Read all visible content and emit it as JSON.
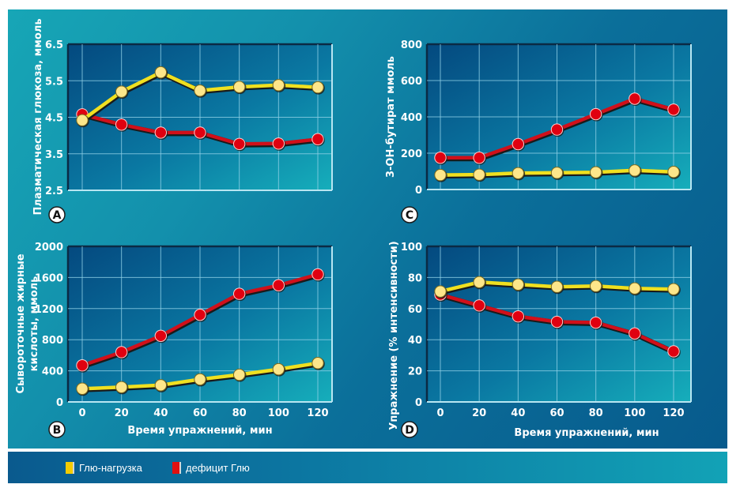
{
  "legend": {
    "items": [
      {
        "label": "Глю-нагрузка",
        "color": "#f5cc00"
      },
      {
        "label": "дефицит  Глю",
        "color": "#e01010"
      }
    ]
  },
  "colors": {
    "series_yellow_line": "#f0e020",
    "series_yellow_marker": "#fde68a",
    "series_red_line": "#d0101a",
    "series_red_marker": "#e00010",
    "grid": "#8fd0e6"
  },
  "chart_data": [
    {
      "panel": "A",
      "type": "line",
      "title": "",
      "xlabel": "",
      "ylabel": "Плазматическая глюкоза, ммоль",
      "x": [
        0,
        20,
        40,
        60,
        80,
        100,
        120
      ],
      "xlim": [
        0,
        120
      ],
      "ylim": [
        2.5,
        6.5
      ],
      "yticks": [
        "2.5",
        "3.5",
        "4.5",
        "5.5",
        "6.5"
      ],
      "ytick_values": [
        2.5,
        3.5,
        4.5,
        5.5,
        6.5
      ],
      "show_xtick_labels": false,
      "grid": true,
      "series": [
        {
          "name": "Глю-нагрузка",
          "values": [
            4.42,
            5.2,
            5.73,
            5.23,
            5.33,
            5.38,
            5.32
          ]
        },
        {
          "name": "дефицит Глю",
          "values": [
            4.58,
            4.3,
            4.08,
            4.08,
            3.77,
            3.78,
            3.9
          ]
        }
      ]
    },
    {
      "panel": "C",
      "type": "line",
      "title": "",
      "xlabel": "",
      "ylabel": "3-ОН-бутират ммоль",
      "x": [
        0,
        20,
        40,
        60,
        80,
        100,
        120
      ],
      "xlim": [
        0,
        120
      ],
      "ylim": [
        0,
        800
      ],
      "yticks": [
        "0",
        "200",
        "400",
        "600",
        "800"
      ],
      "ytick_values": [
        0,
        200,
        400,
        600,
        800
      ],
      "show_xtick_labels": false,
      "grid": true,
      "series": [
        {
          "name": "Глю-нагрузка",
          "values": [
            80,
            82,
            90,
            92,
            95,
            105,
            97
          ]
        },
        {
          "name": "дефицит Глю",
          "values": [
            175,
            175,
            250,
            330,
            415,
            500,
            440
          ]
        }
      ]
    },
    {
      "panel": "B",
      "type": "line",
      "title": "",
      "xlabel": "Время упражнений, мин",
      "ylabel": "Сывороточные жирные кислоты, ммоль",
      "ylabel_lines": [
        "Сывороточные жирные",
        "кислоты, ммоль"
      ],
      "x": [
        0,
        20,
        40,
        60,
        80,
        100,
        120
      ],
      "xticks": [
        "0",
        "20",
        "40",
        "60",
        "80",
        "100",
        "120"
      ],
      "xlim": [
        0,
        120
      ],
      "ylim": [
        0,
        2000
      ],
      "yticks": [
        "0",
        "400",
        "800",
        "1200",
        "1600",
        "2000"
      ],
      "ytick_values": [
        0,
        400,
        800,
        1200,
        1600,
        2000
      ],
      "show_xtick_labels": true,
      "grid": true,
      "series": [
        {
          "name": "Глю-нагрузка",
          "values": [
            170,
            190,
            215,
            290,
            350,
            420,
            500
          ]
        },
        {
          "name": "дефицит Глю",
          "values": [
            470,
            640,
            850,
            1120,
            1390,
            1500,
            1640
          ]
        }
      ]
    },
    {
      "panel": "D",
      "type": "line",
      "title": "",
      "xlabel": "Время упражнений, мин",
      "ylabel": "Упражнение (% интенсивности)",
      "x": [
        0,
        20,
        40,
        60,
        80,
        100,
        120
      ],
      "xticks": [
        "0",
        "20",
        "40",
        "60",
        "80",
        "100",
        "120"
      ],
      "xlim": [
        0,
        120
      ],
      "ylim": [
        0,
        100
      ],
      "yticks": [
        "0",
        "20",
        "40",
        "60",
        "80",
        "100"
      ],
      "ytick_values": [
        0,
        20,
        40,
        60,
        80,
        100
      ],
      "show_xtick_labels": true,
      "grid": true,
      "series": [
        {
          "name": "Глю-нагрузка",
          "values": [
            71,
            77,
            75.5,
            74,
            74.5,
            73,
            72.5
          ]
        },
        {
          "name": "дефицит Глю",
          "values": [
            69,
            62,
            55,
            51.5,
            51,
            44,
            32.5
          ]
        }
      ]
    }
  ],
  "legend_position": "bottom-left"
}
